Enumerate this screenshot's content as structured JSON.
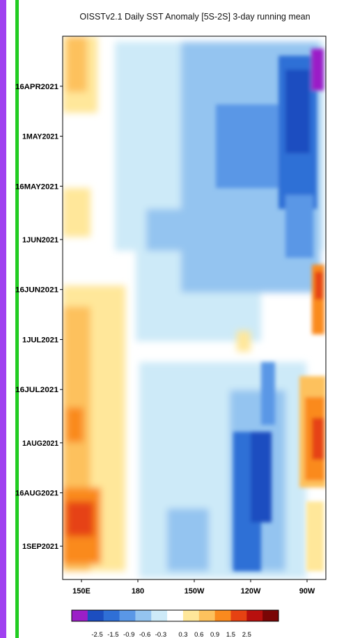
{
  "chart_data": {
    "type": "heatmap",
    "title": "OISSTv2.1 Daily SST Anomaly [5S-2S] 3-day running mean",
    "xlabel": "",
    "ylabel": "",
    "x_range": [
      "140E",
      "80W"
    ],
    "y_range": [
      "01APR2021",
      "11SEP2021"
    ],
    "x_ticks": [
      "150E",
      "180",
      "150W",
      "120W",
      "90W"
    ],
    "y_ticks": [
      "16APR2021",
      "1MAY2021",
      "16MAY2021",
      "1JUN2021",
      "16JUN2021",
      "1JUL2021",
      "16JUL2021",
      "1AUG2021",
      "16AUG2021",
      "1SEP2021"
    ],
    "colorbar": {
      "labels": [
        "-2.5",
        "-1.5",
        "-0.9",
        "-0.6",
        "-0.3",
        "0.3",
        "0.6",
        "0.9",
        "1.5",
        "2.5"
      ],
      "colors": [
        "#9b1fc7",
        "#1c4ec0",
        "#2f6fd6",
        "#5a97e6",
        "#94c4f0",
        "#cdeaf8",
        "#ffffff",
        "#ffe79a",
        "#fdc15d",
        "#fa8a1e",
        "#e64212",
        "#b8100e",
        "#7a0606"
      ]
    },
    "series": [
      {
        "name": "",
        "description_blobs": [
          {
            "lon": 150,
            "date": "2021-04-05",
            "value": 1.0
          },
          {
            "lon": 150,
            "date": "2021-05-25",
            "value": 0.7
          },
          {
            "lon": 150,
            "date": "2021-07-05",
            "value": 0.9
          },
          {
            "lon": 150,
            "date": "2021-08-18",
            "value": 1.2
          },
          {
            "lon": 100,
            "date": "2021-04-20",
            "value": -1.5
          },
          {
            "lon": 90,
            "date": "2021-06-16",
            "value": 1.5
          },
          {
            "lon": 90,
            "date": "2021-08-01",
            "value": 1.3
          },
          {
            "lon": 120,
            "date": "2021-08-10",
            "value": -1.5
          }
        ]
      }
    ]
  },
  "colors": {
    "purple_stripe": "#a040f0",
    "green_stripe": "#22cc22"
  }
}
